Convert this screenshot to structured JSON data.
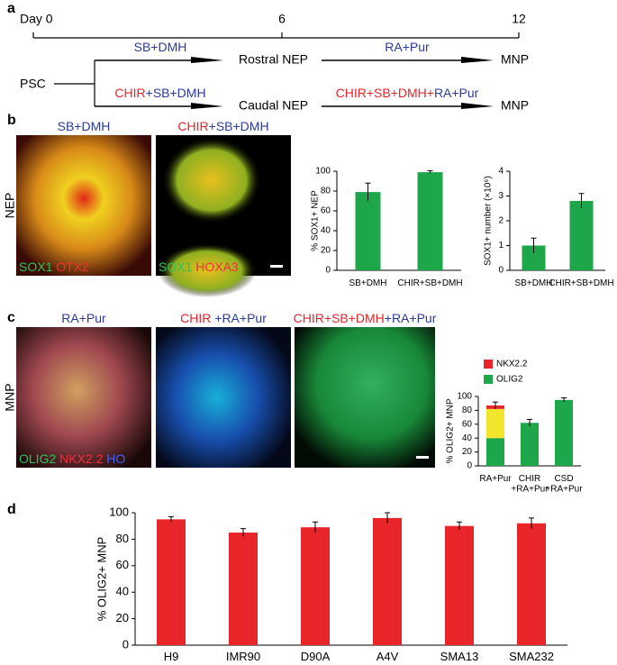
{
  "panel_labels": [
    "a",
    "b",
    "c",
    "d"
  ],
  "timeline": {
    "days": [
      "Day 0",
      "6",
      "12"
    ],
    "start": "PSC",
    "branches": [
      {
        "step1": [
          {
            "text": "SB+DMH",
            "color": "#2b3a9c"
          }
        ],
        "stage": "Rostral NEP",
        "step2": [
          {
            "text": "RA+Pur",
            "color": "#2b3a9c"
          }
        ],
        "end": "MNP"
      },
      {
        "step1": [
          {
            "text": "CHIR",
            "color": "#e3242b"
          },
          {
            "text": "+SB+DMH",
            "color": "#2b3a9c"
          }
        ],
        "stage": "Caudal NEP",
        "step2": [
          {
            "text": "CHIR+SB+DMH+",
            "color": "#e3242b"
          },
          {
            "text": "RA+Pur",
            "color": "#2b3a9c"
          }
        ],
        "end": "MNP"
      }
    ]
  },
  "panel_b": {
    "row_label": "NEP",
    "images": [
      {
        "title": [
          {
            "text": "SB+DMH",
            "color": "#2b3a9c"
          }
        ],
        "stain": [
          {
            "text": "SOX1",
            "color": "#2fc25a"
          },
          {
            "text": " OTX2",
            "color": "#f0303a"
          }
        ]
      },
      {
        "title": [
          {
            "text": "CHIR",
            "color": "#e3242b"
          },
          {
            "text": "+SB+DMH",
            "color": "#2b3a9c"
          }
        ],
        "stain": [
          {
            "text": "SOX1",
            "color": "#2fc25a"
          },
          {
            "text": " HOXA3",
            "color": "#f0303a"
          }
        ]
      }
    ]
  },
  "panel_c": {
    "row_label": "MNP",
    "images": [
      {
        "title": [
          {
            "text": "RA+Pur",
            "color": "#2b3a9c"
          }
        ],
        "stain": [
          {
            "text": "OLIG2",
            "color": "#2fc25a"
          },
          {
            "text": " NKX2.2",
            "color": "#f0303a"
          },
          {
            "text": " HO",
            "color": "#4060ff"
          }
        ]
      },
      {
        "title": [
          {
            "text": "CHIR ",
            "color": "#e3242b"
          },
          {
            "text": "+RA+Pur",
            "color": "#2b3a9c"
          }
        ],
        "stain": []
      },
      {
        "title": [
          {
            "text": "CHIR+SB+DMH",
            "color": "#e3242b"
          },
          {
            "text": "+RA+Pur",
            "color": "#2b3a9c"
          }
        ],
        "stain": []
      }
    ]
  },
  "chart_data": [
    {
      "type": "bar",
      "y_label": "% SOX1+ NEP",
      "categories": [
        "SB+DMH",
        "CHIR+SB+DMH"
      ],
      "values": [
        79,
        99
      ],
      "errors": [
        9,
        1.5
      ],
      "color": "#1ea64b",
      "ylim": [
        0,
        100
      ],
      "yticks": [
        0,
        20,
        40,
        60,
        80,
        100
      ]
    },
    {
      "type": "bar",
      "y_label": "SOX1+ number (×10⁶)",
      "categories": [
        "SB+DMH",
        "CHIR+SB+DMH"
      ],
      "values": [
        1,
        2.8
      ],
      "errors": [
        0.3,
        0.3
      ],
      "color": "#1ea64b",
      "ylim": [
        0,
        4
      ],
      "yticks": [
        0,
        1,
        2,
        3,
        4
      ]
    },
    {
      "type": "stacked_bar",
      "y_label": "% OLIG2+ MNP",
      "categories": [
        "RA+Pur",
        "CHIR\n+RA+Pur",
        "CSD\n+RA+Pur"
      ],
      "series": [
        {
          "name": "OLIG2",
          "color": "#1ea64b",
          "values": [
            40,
            62,
            95
          ]
        },
        {
          "color": "#f2e52b",
          "values": [
            42,
            null,
            null
          ]
        },
        {
          "name": "NKX2.2",
          "color": "#e8262a",
          "values": [
            5,
            null,
            null
          ]
        }
      ],
      "errors": [
        5,
        5,
        3
      ],
      "ylim": [
        0,
        100
      ],
      "yticks": [
        0,
        20,
        40,
        60,
        80,
        100
      ]
    },
    {
      "type": "bar",
      "y_label": "% OLIG2+ MNP",
      "categories": [
        "H9",
        "IMR90",
        "D90A",
        "A4V",
        "SMA13",
        "SMA232"
      ],
      "values": [
        95,
        85,
        89,
        96,
        90,
        92
      ],
      "errors": [
        2,
        3,
        4,
        4,
        3,
        4
      ],
      "color": "#e8262a",
      "ylim": [
        0,
        100
      ],
      "yticks": [
        0,
        20,
        40,
        60,
        80,
        100
      ]
    }
  ]
}
